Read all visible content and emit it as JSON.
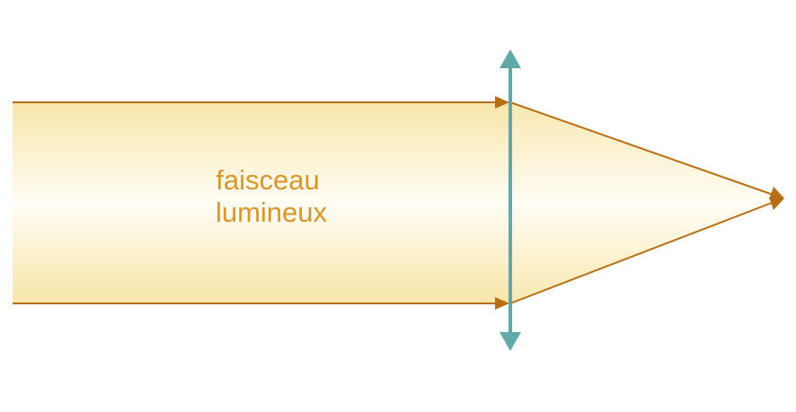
{
  "diagram": {
    "label_lines": [
      "faisceau",
      "lumineux"
    ],
    "colors": {
      "beam_edge": "#f7e6a8",
      "beam_center": "#fffdf5",
      "ray": "#b86f14",
      "lens": "#5fa9a9",
      "label": "#d9962a"
    }
  }
}
